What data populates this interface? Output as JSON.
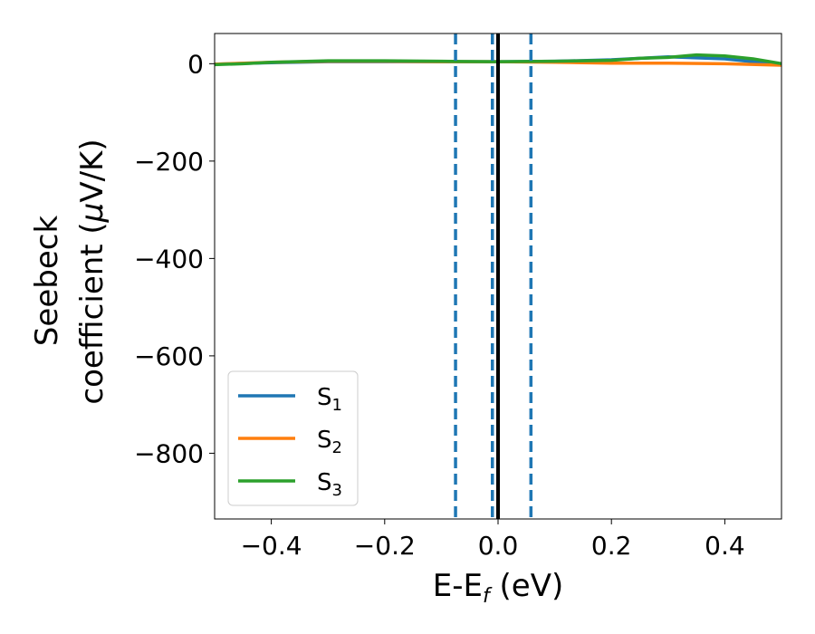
{
  "chart_data": {
    "type": "line",
    "xlabel": {
      "main": "E-E",
      "sub": "f",
      "tail": " (eV)"
    },
    "ylabel": {
      "line1": "Seebeck",
      "line2": "coefficient  (",
      "mu": "μ",
      "tail": "V/K)"
    },
    "xlim": [
      -0.5,
      0.5
    ],
    "ylim": [
      -935,
      62
    ],
    "xticks": [
      -0.4,
      -0.2,
      0.0,
      0.2,
      0.4
    ],
    "xtick_labels": [
      "−0.4",
      "−0.2",
      "0.0",
      "0.2",
      "0.4"
    ],
    "yticks": [
      0,
      -200,
      -400,
      -600,
      -800
    ],
    "ytick_labels": [
      "0",
      "−200",
      "−400",
      "−600",
      "−800"
    ],
    "legend_position": "lower-left",
    "series": [
      {
        "name": "S1",
        "label_main": "S",
        "label_sub": "1",
        "color": "#1f77b4",
        "x": [
          -0.5,
          -0.4,
          -0.3,
          -0.2,
          -0.1,
          0.0,
          0.1,
          0.2,
          0.3,
          0.4,
          0.5
        ],
        "y": [
          -1,
          2,
          4,
          4,
          4,
          4,
          5,
          8,
          14,
          10,
          -2
        ]
      },
      {
        "name": "S2",
        "label_main": "S",
        "label_sub": "2",
        "color": "#ff7f0e",
        "x": [
          -0.5,
          -0.4,
          -0.3,
          -0.2,
          -0.1,
          0.0,
          0.1,
          0.2,
          0.3,
          0.4,
          0.5
        ],
        "y": [
          -1,
          3,
          5,
          5,
          4,
          4,
          3,
          1,
          1,
          0,
          -3
        ]
      },
      {
        "name": "S3",
        "label_main": "S",
        "label_sub": "3",
        "color": "#2ca02c",
        "x": [
          -0.5,
          -0.45,
          -0.4,
          -0.3,
          -0.2,
          -0.1,
          0.0,
          0.1,
          0.2,
          0.25,
          0.3,
          0.35,
          0.4,
          0.45,
          0.5
        ],
        "y": [
          -2,
          0,
          3,
          6,
          6,
          5,
          4,
          5,
          7,
          11,
          13,
          18,
          16,
          10,
          0
        ]
      }
    ],
    "vlines": [
      {
        "x": -0.075,
        "color": "#1f77b4",
        "style": "dashed"
      },
      {
        "x": -0.01,
        "color": "#1f77b4",
        "style": "dashed"
      },
      {
        "x": 0.058,
        "color": "#1f77b4",
        "style": "dashed"
      },
      {
        "x": 0.0,
        "color": "#000000",
        "style": "solid"
      }
    ],
    "grid": false
  }
}
